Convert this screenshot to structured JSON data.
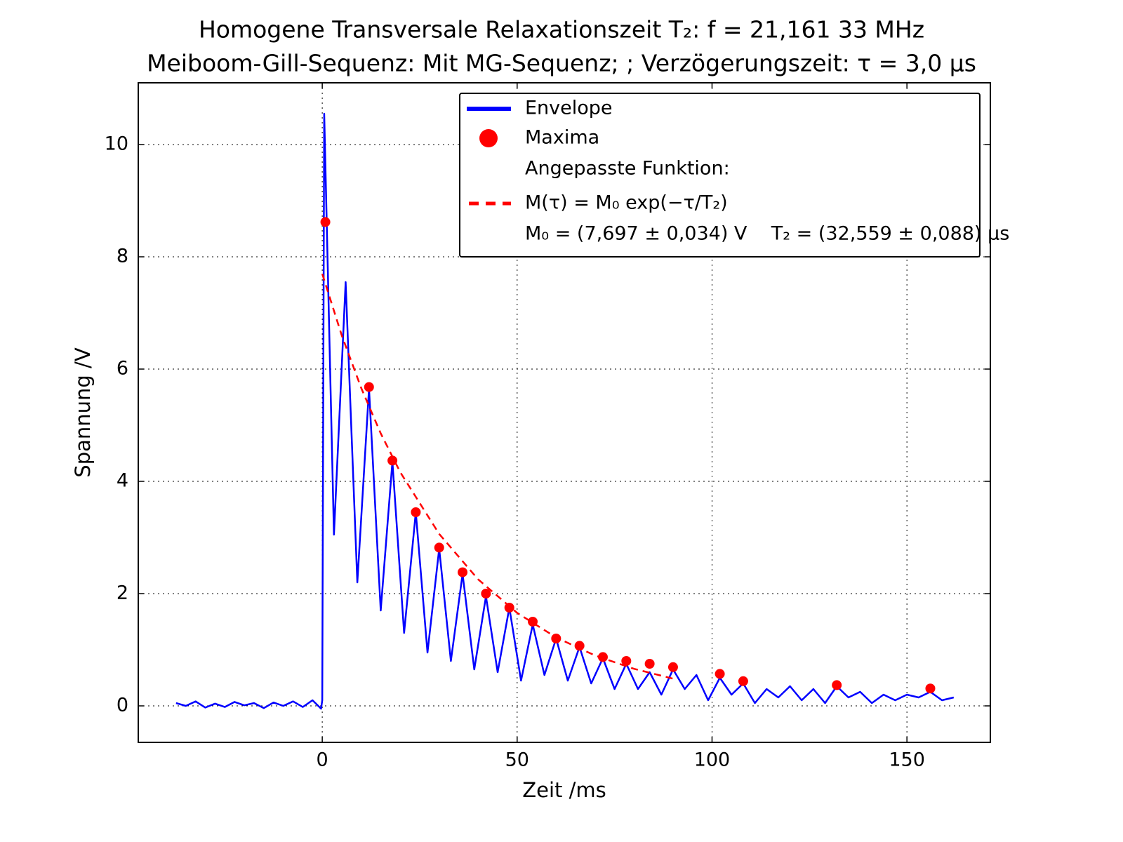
{
  "chart_data": {
    "type": "line",
    "title": "Homogene Transversale Relaxationszeit T₂: f = 21,161 33 MHz",
    "subtitle": "Meiboom-Gill-Sequenz: Mit MG-Sequenz; ; Verzögerungszeit: τ = 3,0 µs",
    "x_label": "Zeit /ms",
    "y_label": "Spannung /V",
    "xlim": [
      -47.2,
      171.4
    ],
    "ylim": [
      -0.65,
      11.1
    ],
    "xticks": [
      0,
      50,
      100,
      150
    ],
    "yticks": [
      0,
      2,
      4,
      6,
      8,
      10
    ],
    "grid": true,
    "legend": "upper right",
    "fit_label": "Angepasste Funktion:",
    "fit_parameters": "M₀ = (7,697 ± 0,034) V    T₂ = (32,559 ± 0,088) µs",
    "series": [
      {
        "name": "Envelope",
        "style": "line",
        "color": "#0000ff",
        "x": [
          -37.5,
          -35,
          -32.5,
          -30,
          -27.5,
          -25,
          -22.5,
          -20,
          -17.5,
          -15,
          -12.5,
          -10,
          -7.5,
          -5,
          -2.5,
          -0.3,
          0,
          0.5,
          3,
          6,
          9,
          12,
          15,
          18,
          21,
          24,
          27,
          30,
          33,
          36,
          39,
          42,
          45,
          48,
          51,
          54,
          57,
          60,
          63,
          66,
          69,
          72,
          75,
          78,
          81,
          84,
          87,
          90,
          93,
          96,
          99,
          102,
          105,
          108,
          111,
          114,
          117,
          120,
          123,
          126,
          129,
          132,
          135,
          138,
          141,
          144,
          147,
          150,
          153,
          156,
          159,
          162
        ],
        "values": [
          0.05,
          0.0,
          0.08,
          -0.03,
          0.04,
          -0.02,
          0.07,
          0.01,
          0.05,
          -0.04,
          0.06,
          0.0,
          0.08,
          -0.02,
          0.1,
          -0.05,
          0.1,
          10.55,
          3.05,
          7.55,
          2.2,
          5.65,
          1.7,
          4.35,
          1.3,
          3.45,
          0.95,
          2.8,
          0.8,
          2.35,
          0.65,
          1.95,
          0.6,
          1.75,
          0.45,
          1.45,
          0.55,
          1.2,
          0.45,
          1.05,
          0.4,
          0.85,
          0.3,
          0.75,
          0.3,
          0.6,
          0.2,
          0.65,
          0.3,
          0.55,
          0.1,
          0.5,
          0.2,
          0.4,
          0.05,
          0.3,
          0.15,
          0.35,
          0.1,
          0.3,
          0.05,
          0.35,
          0.15,
          0.25,
          0.05,
          0.2,
          0.1,
          0.2,
          0.15,
          0.25,
          0.1,
          0.15
        ]
      },
      {
        "name": "Maxima",
        "style": "markers",
        "color": "#ff0000",
        "x": [
          0.8,
          12,
          18,
          24,
          30,
          36,
          42,
          48,
          54,
          60,
          66,
          72,
          78,
          84,
          90,
          102,
          108,
          132,
          156
        ],
        "values": [
          8.62,
          5.68,
          4.37,
          3.45,
          2.82,
          2.38,
          2.0,
          1.75,
          1.5,
          1.2,
          1.07,
          0.87,
          0.8,
          0.75,
          0.69,
          0.57,
          0.44,
          0.37,
          0.31
        ]
      },
      {
        "name": "M(τ) = M₀ exp(−τ/T₂)",
        "style": "dashed",
        "color": "#ff0000",
        "x": [
          0,
          5,
          10,
          15,
          20,
          30,
          40,
          50,
          60,
          70,
          80,
          90
        ],
        "values": [
          7.697,
          6.601,
          5.662,
          4.855,
          4.164,
          3.063,
          2.253,
          1.657,
          1.219,
          0.897,
          0.66,
          0.485
        ]
      }
    ]
  }
}
